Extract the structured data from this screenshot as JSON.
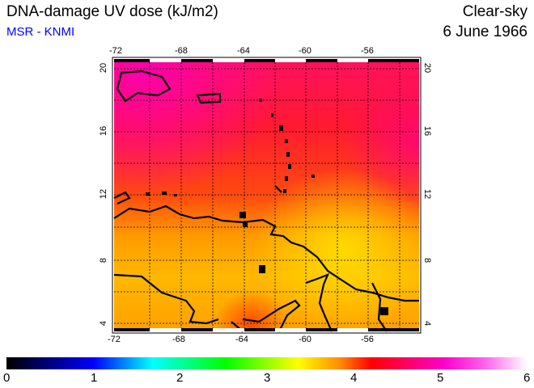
{
  "header": {
    "title": "DNA-damage UV dose (kJ/m2)",
    "source": "MSR - KNMI",
    "mode": "Clear-sky",
    "date": "6 June 1966"
  },
  "map": {
    "lon_ticks": [
      "-72",
      "-68",
      "-64",
      "-60",
      "-56"
    ],
    "lat_ticks": [
      "20",
      "16",
      "12",
      "8",
      "4"
    ],
    "lon_range": [
      -72,
      -53
    ],
    "lat_range": [
      3.5,
      20.5
    ]
  },
  "colorbar": {
    "labels": [
      "0",
      "1",
      "2",
      "3",
      "4",
      "5",
      "6"
    ],
    "min": 0,
    "max": 6,
    "colors": [
      "#000000",
      "#0000ff",
      "#00ffff",
      "#00ff00",
      "#ffff00",
      "#ff0000",
      "#ff00cc",
      "#ffffff"
    ]
  }
}
